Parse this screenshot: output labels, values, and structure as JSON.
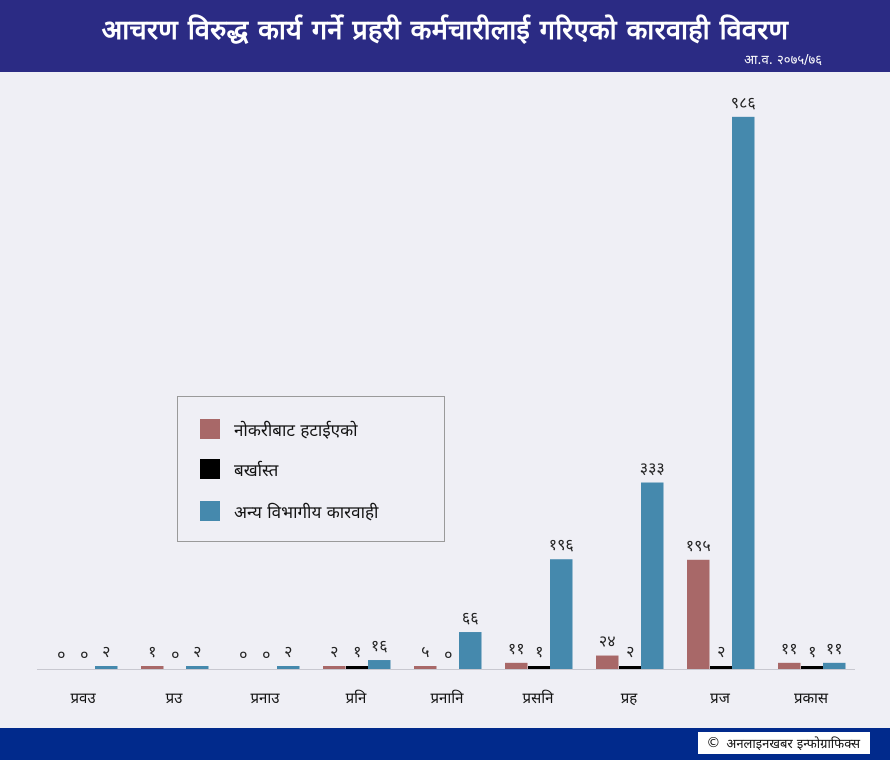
{
  "header": {
    "title": "आचरण विरुद्ध कार्य गर्ने प्रहरी कर्मचारीलाई गरिएको कारवाही विवरण",
    "subtitle": "आ.व. २०७५/७६"
  },
  "colors": {
    "header_bg": "#2b2b84",
    "footer_bg": "#012a8c",
    "series_dismissed": "#a86868",
    "series_fired": "#000000",
    "series_other": "#4589ad"
  },
  "chart_data": {
    "type": "bar",
    "title": "आचरण विरुद्ध कार्य गर्ने प्रहरी कर्मचारीलाई गरिएको कारवाही विवरण",
    "subtitle": "आ.व. २०७५/७६",
    "xlabel": "",
    "ylabel": "",
    "ylim": [
      0,
      1000
    ],
    "grid": false,
    "legend_position": "center-left",
    "categories": [
      "प्रवउ",
      "प्रउ",
      "प्रनाउ",
      "प्रनि",
      "प्रनानि",
      "प्रसनि",
      "प्रह",
      "प्रज",
      "प्रकास"
    ],
    "series": [
      {
        "name": "नोकरीबाट हटाईएको",
        "color": "#a86868",
        "values": [
          0,
          1,
          0,
          2,
          5,
          11,
          24,
          195,
          11
        ],
        "labels": [
          "०",
          "१",
          "०",
          "२",
          "५",
          "११",
          "२४",
          "१९५",
          "११"
        ]
      },
      {
        "name": "बर्खास्त",
        "color": "#000000",
        "values": [
          0,
          0,
          0,
          1,
          0,
          1,
          2,
          2,
          1
        ],
        "labels": [
          "०",
          "०",
          "०",
          "१",
          "०",
          "१",
          "२",
          "२",
          "१"
        ]
      },
      {
        "name": "अन्य विभागीय कारवाही",
        "color": "#4589ad",
        "values": [
          2,
          2,
          2,
          16,
          66,
          196,
          333,
          986,
          11
        ],
        "labels": [
          "२",
          "२",
          "२",
          "१६",
          "६६",
          "१९६",
          "३३३",
          "९८६",
          "११"
        ]
      }
    ]
  },
  "footer": {
    "copyright_symbol": "©",
    "credit": "अनलाइनखबर इन्फोग्राफिक्स"
  }
}
